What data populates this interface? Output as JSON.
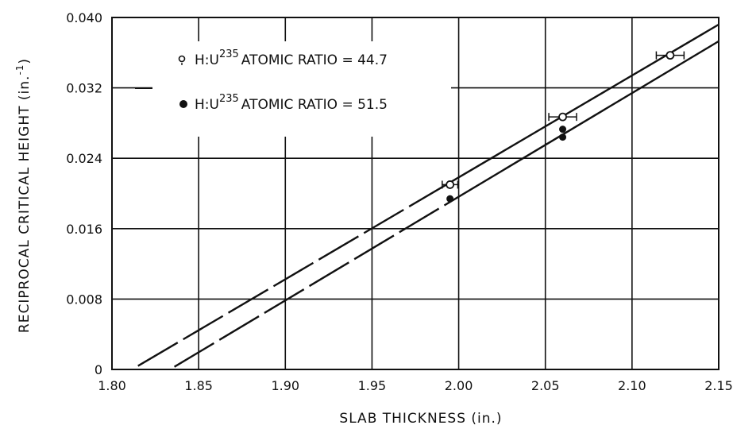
{
  "chart_data": {
    "type": "line",
    "xlabel": "SLAB THICKNESS (in.)",
    "ylabel": "RECIPROCAL CRITICAL HEIGHT (in.",
    "ylabel_sup": "-1",
    "ylabel_tail": ")",
    "xlim": [
      1.8,
      2.15
    ],
    "ylim": [
      0,
      0.04
    ],
    "x_ticks": [
      1.8,
      1.85,
      1.9,
      1.95,
      2.0,
      2.05,
      2.1,
      2.15
    ],
    "x_tick_labels": [
      "1.80",
      "1.85",
      "1.90",
      "1.95",
      "2.00",
      "2.05",
      "2.10",
      "2.15"
    ],
    "y_ticks": [
      0,
      0.008,
      0.016,
      0.024,
      0.032,
      0.04
    ],
    "y_tick_labels": [
      "0",
      "0.008",
      "0.016",
      "0.024",
      "0.032",
      "0.040"
    ],
    "grid": true,
    "legend_position": "top-left",
    "series": [
      {
        "name": "H:U235 ATOMIC RATIO = 44.7",
        "legend_parts": [
          "H:U",
          "235",
          "ATOMIC RATIO = 44.7"
        ],
        "marker": "open-circle",
        "points": [
          {
            "x": 1.995,
            "y": 0.021,
            "xerr": 0.0045
          },
          {
            "x": 2.06,
            "y": 0.0287,
            "xerr": 0.008
          },
          {
            "x": 2.122,
            "y": 0.0357,
            "xerr": 0.008
          }
        ],
        "fit_line": {
          "x": [
            1.815,
            2.15
          ],
          "y": [
            0.0004,
            0.0392
          ],
          "dashed_x": [
            1.815,
            1.995
          ],
          "solid_x": [
            1.995,
            2.15
          ]
        }
      },
      {
        "name": "H:U235 ATOMIC RATIO = 51.5",
        "legend_parts": [
          "H:U",
          "235",
          "ATOMIC RATIO = 51.5"
        ],
        "marker": "filled-circle",
        "points": [
          {
            "x": 1.995,
            "y": 0.0194
          },
          {
            "x": 2.06,
            "y": 0.0273
          },
          {
            "x": 2.06,
            "y": 0.0264
          }
        ],
        "fit_line": {
          "x": [
            1.836,
            2.15
          ],
          "y": [
            0.0003,
            0.0373
          ],
          "dashed_x": [
            1.836,
            1.995
          ],
          "solid_x": [
            1.995,
            2.15
          ]
        }
      }
    ]
  }
}
